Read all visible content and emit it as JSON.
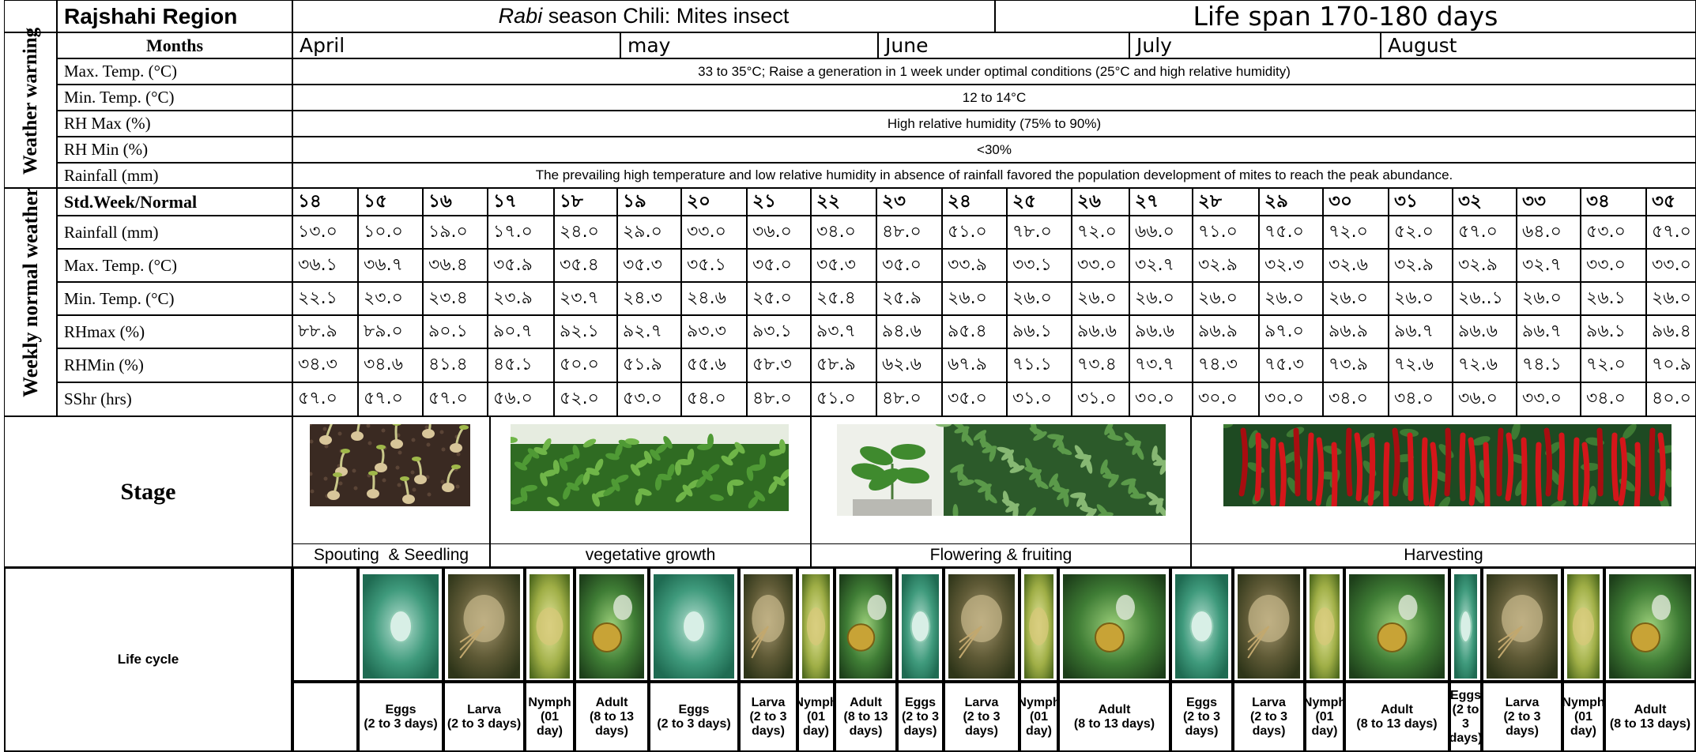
{
  "header": {
    "region": "Rajshahi Region",
    "title_italic": "Rabi",
    "title_rest": " season Chili: Mites insect",
    "lifespan": "Life span 170-180 days"
  },
  "months": {
    "label": "Months",
    "items": [
      "April",
      "may",
      "June",
      "July",
      "August"
    ]
  },
  "weather_warning": {
    "section_label": "Weather warning",
    "rows": [
      {
        "label": "Max. Temp. (°C)",
        "value": "33 to 35°C; Raise a generation in 1 week under optimal conditions (25°C and high relative humidity)"
      },
      {
        "label": "Min. Temp. (°C)",
        "value": "12 to 14°C"
      },
      {
        "label": "RH Max (%)",
        "value": "High relative humidity (75% to 90%)"
      },
      {
        "label": "RH Min (%)",
        "value": "<30%"
      },
      {
        "label": "Rainfall (mm)",
        "value": "The prevailing high temperature and low relative humidity in absence of rainfall favored the population development of mites to reach the peak abundance."
      }
    ]
  },
  "weekly": {
    "section_label": "Weekly normal weather",
    "week_label": "Std.Week/Normal",
    "weeks": [
      "১৪",
      "১৫",
      "১৬",
      "১৭",
      "১৮",
      "১৯",
      "২০",
      "২১",
      "২২",
      "২৩",
      "২৪",
      "২৫",
      "২৬",
      "২৭",
      "২৮",
      "২৯",
      "৩০",
      "৩১",
      "৩২",
      "৩৩",
      "৩৪",
      "৩৫"
    ],
    "rows": [
      {
        "label": "Rainfall (mm)",
        "values": [
          "১৩.০",
          "১০.০",
          "১৯.০",
          "১৭.০",
          "২৪.০",
          "২৯.০",
          "৩৩.০",
          "৩৬.০",
          "৩৪.০",
          "৪৮.০",
          "৫১.০",
          "৭৮.০",
          "৭২.০",
          "৬৬.০",
          "৭১.০",
          "৭৫.০",
          "৭২.০",
          "৫২.০",
          "৫৭.০",
          "৬৪.০",
          "৫৩.০",
          "৫৭.০"
        ]
      },
      {
        "label": "Max. Temp. (°C)",
        "values": [
          "৩৬.১",
          "৩৬.৭",
          "৩৬.৪",
          "৩৫.৯",
          "৩৫.৪",
          "৩৫.৩",
          "৩৫.১",
          "৩৫.০",
          "৩৫.৩",
          "৩৫.০",
          "৩৩.৯",
          "৩৩.১",
          "৩৩.০",
          "৩২.৭",
          "৩২.৯",
          "৩২.৩",
          "৩২.৬",
          "৩২.৯",
          "৩২.৯",
          "৩২.৭",
          "৩৩.০",
          "৩৩.০"
        ]
      },
      {
        "label": "Min. Temp. (°C)",
        "values": [
          "২২.১",
          "২৩.০",
          "২৩.৪",
          "২৩.৯",
          "২৩.৭",
          "২৪.৩",
          "২৪.৬",
          "২৫.০",
          "২৫.৪",
          "২৫.৯",
          "২৬.০",
          "২৬.০",
          "২৬.০",
          "২৬.০",
          "২৬.০",
          "২৬.০",
          "২৬.০",
          "২৬.০",
          "২৬..১",
          "২৬.০",
          "২৬.১",
          "২৬.০"
        ]
      },
      {
        "label": "RHmax (%)",
        "values": [
          "৮৮.৯",
          "৮৯.০",
          "৯০.১",
          "৯০.৭",
          "৯২.১",
          "৯২.৭",
          "৯৩.৩",
          "৯৩.১",
          "৯৩.৭",
          "৯৪.৬",
          "৯৫.৪",
          "৯৬.১",
          "৯৬.৬",
          "৯৬.৬",
          "৯৬.৯",
          "৯৭.০",
          "৯৬.৯",
          "৯৬.৭",
          "৯৬.৬",
          "৯৬.৭",
          "৯৬.১",
          "৯৬.৪"
        ]
      },
      {
        "label": "RHMin (%)",
        "values": [
          "৩৪.৩",
          "৩৪.৬",
          "৪১.৪",
          "৪৫.১",
          "৫০.০",
          "৫১.৯",
          "৫৫.৬",
          "৫৮.৩",
          "৫৮.৯",
          "৬২.৬",
          "৬৭.৯",
          "৭১.১",
          "৭৩.৪",
          "৭৩.৭",
          "৭৪.৩",
          "৭৫.৩",
          "৭৩.৯",
          "৭২.৬",
          "৭২.৬",
          "৭৪.১",
          "৭২.০",
          "৭০.৯"
        ]
      },
      {
        "label": "SShr (hrs)",
        "values": [
          "৫৭.০",
          "৫৭.০",
          "৫৭.০",
          "৫৬.০",
          "৫২.০",
          "৫৩.০",
          "৫৪.০",
          "৪৮.০",
          "৫১.০",
          "৪৮.০",
          "৩৫.০",
          "৩১.০",
          "৩১.০",
          "৩০.০",
          "৩০.০",
          "৩০.০",
          "৩৪.০",
          "৩৪.০",
          "৩৬.০",
          "৩৩.০",
          "৩৪.০",
          "৪০.০"
        ]
      }
    ]
  },
  "stage": {
    "label": "Stage",
    "items": [
      {
        "name": "Spouting  & Seedling",
        "image": "seedlings-photo"
      },
      {
        "name": "vegetative growth",
        "image": "leafy-plants-photo"
      },
      {
        "name": "Flowering & fruiting",
        "image": "flowering-plants-photo"
      },
      {
        "name": "Harvesting",
        "image": "red-chili-photo"
      }
    ]
  },
  "life_cycle": {
    "label": "Life cycle",
    "stages": [
      {
        "lines": [
          "Eggs",
          "(2 to 3 days)"
        ],
        "type": "egg"
      },
      {
        "lines": [
          "Larva",
          "(2 to 3 days)"
        ],
        "type": "larva"
      },
      {
        "lines": [
          "Nymph",
          "(01 day)"
        ],
        "type": "nymph"
      },
      {
        "lines": [
          "Adult",
          "(8 to 13",
          "days)"
        ],
        "type": "adult"
      },
      {
        "lines": [
          "Eggs",
          "(2 to 3 days)"
        ],
        "type": "egg"
      },
      {
        "lines": [
          "Larva",
          "(2 to 3",
          "days)"
        ],
        "type": "larva"
      },
      {
        "lines": [
          "Nymph",
          "(01",
          "day)"
        ],
        "type": "nymph"
      },
      {
        "lines": [
          "Adult",
          "(8 to 13",
          "days)"
        ],
        "type": "adult"
      },
      {
        "lines": [
          "Eggs",
          "(2 to 3",
          "days)"
        ],
        "type": "egg"
      },
      {
        "lines": [
          "Larva",
          "(2 to 3",
          "days)"
        ],
        "type": "larva"
      },
      {
        "lines": [
          "Nymph",
          "(01",
          "day)"
        ],
        "type": "nymph"
      },
      {
        "lines": [
          "Adult",
          "(8 to 13 days)"
        ],
        "type": "adult"
      },
      {
        "lines": [
          "Eggs",
          "(2 to 3",
          "days)"
        ],
        "type": "egg"
      },
      {
        "lines": [
          "Larva",
          "(2 to 3",
          "days)"
        ],
        "type": "larva"
      },
      {
        "lines": [
          "Nymph",
          "(01",
          "day)"
        ],
        "type": "nymph"
      },
      {
        "lines": [
          "Adult",
          "(8 to 13 days)"
        ],
        "type": "adult"
      },
      {
        "lines": [
          "Eggs",
          "(2 to",
          "3",
          "days)"
        ],
        "type": "egg"
      },
      {
        "lines": [
          "Larva",
          "(2 to 3",
          "days)"
        ],
        "type": "larva"
      },
      {
        "lines": [
          "Nymph",
          "(01",
          "day)"
        ],
        "type": "nymph"
      },
      {
        "lines": [
          "Adult",
          "(8 to 13 days)"
        ],
        "type": "adult"
      }
    ]
  }
}
